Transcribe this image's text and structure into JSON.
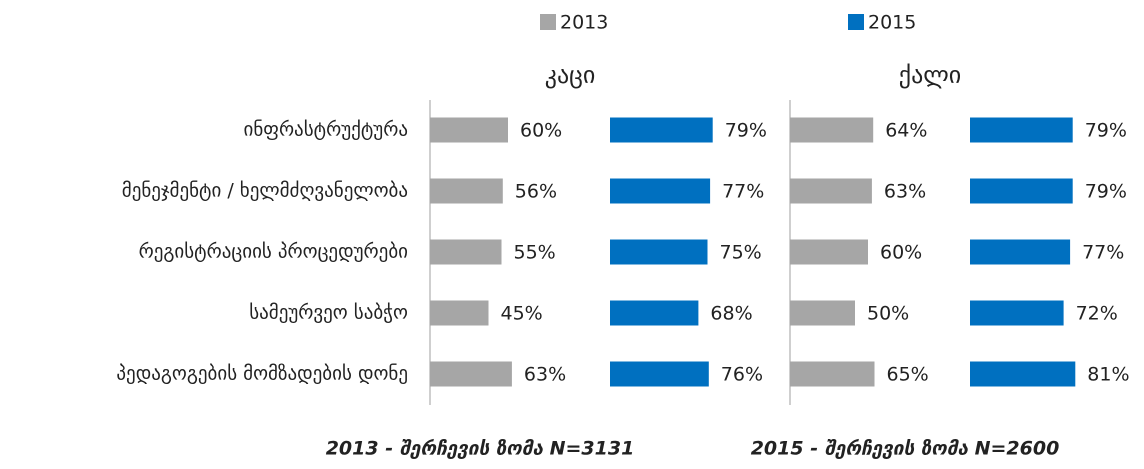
{
  "chart_data": [
    {
      "type": "bar",
      "orientation": "horizontal",
      "title": "კაცი",
      "categories": [
        "ინფრასტრუქტურა",
        "მენეჯმენტი / ხელმძღვანელობა",
        "რეგისტრაციის პროცედურები",
        "სამეურვეო საბჭო",
        "პედაგოგების მომზადების დონე"
      ],
      "series": [
        {
          "name": "2013",
          "color": "#a6a6a6",
          "values": [
            60,
            56,
            55,
            45,
            63
          ],
          "value_labels": [
            "60%",
            "56%",
            "55%",
            "45%",
            "63%"
          ]
        },
        {
          "name": "2015",
          "color": "#0070c0",
          "values": [
            79,
            77,
            75,
            68,
            76
          ],
          "value_labels": [
            "79%",
            "77%",
            "75%",
            "68%",
            "76%"
          ]
        }
      ]
    },
    {
      "type": "bar",
      "orientation": "horizontal",
      "title": "ქალი",
      "series": [
        {
          "name": "2013",
          "color": "#a6a6a6",
          "values": [
            64,
            63,
            60,
            50,
            65
          ],
          "value_labels": [
            "64%",
            "63%",
            "60%",
            "50%",
            "65%"
          ]
        },
        {
          "name": "2015",
          "color": "#0070c0",
          "values": [
            79,
            79,
            77,
            72,
            81
          ],
          "value_labels": [
            "79%",
            "79%",
            "77%",
            "72%",
            "81%"
          ]
        }
      ]
    }
  ],
  "notes": [
    "2013 - შერჩევის ზომა N=3131",
    "2015 - შერჩევის ზომა N=2600"
  ]
}
